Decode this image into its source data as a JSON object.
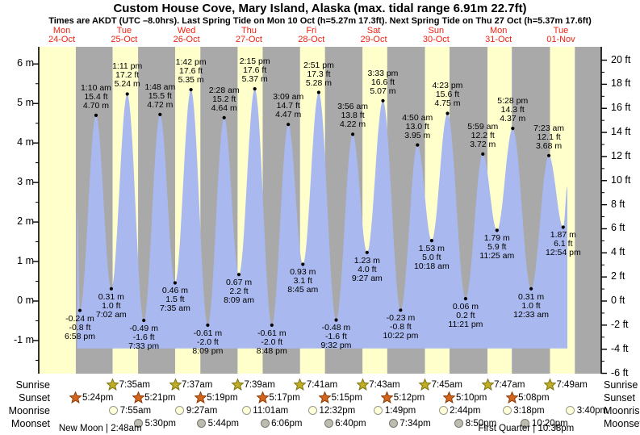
{
  "header": {
    "title": "Custom House Cove, Mary Island, Alaska (max. tidal range 6.91m 22.7ft)",
    "subtitle": "Times are AKDT (UTC –8.0hrs). Last Spring Tide on Mon 10 Oct (h=5.27m 17.3ft). Next Spring Tide on Thu 27 Oct (h=5.37m 17.6ft)"
  },
  "days": [
    {
      "weekday": "Mon",
      "date": "24-Oct"
    },
    {
      "weekday": "Tue",
      "date": "25-Oct"
    },
    {
      "weekday": "Wed",
      "date": "26-Oct"
    },
    {
      "weekday": "Thu",
      "date": "27-Oct"
    },
    {
      "weekday": "Fri",
      "date": "28-Oct"
    },
    {
      "weekday": "Sat",
      "date": "29-Oct"
    },
    {
      "weekday": "Sun",
      "date": "30-Oct"
    },
    {
      "weekday": "Mon",
      "date": "31-Oct"
    },
    {
      "weekday": "Tue",
      "date": "01-Nov"
    }
  ],
  "axes": {
    "left": [
      {
        "label": "6 m",
        "value": 6
      },
      {
        "label": "5 m",
        "value": 5
      },
      {
        "label": "4 m",
        "value": 4
      },
      {
        "label": "3 m",
        "value": 3
      },
      {
        "label": "2 m",
        "value": 2
      },
      {
        "label": "1 m",
        "value": 1
      },
      {
        "label": "0 m",
        "value": 0
      },
      {
        "label": "-1 m",
        "value": -1
      }
    ],
    "right": [
      {
        "label": "20 ft",
        "value": 20
      },
      {
        "label": "18 ft",
        "value": 18
      },
      {
        "label": "16 ft",
        "value": 16
      },
      {
        "label": "14 ft",
        "value": 14
      },
      {
        "label": "12 ft",
        "value": 12
      },
      {
        "label": "10 ft",
        "value": 10
      },
      {
        "label": "8 ft",
        "value": 8
      },
      {
        "label": "6 ft",
        "value": 6
      },
      {
        "label": "4 ft",
        "value": 4
      },
      {
        "label": "2 ft",
        "value": 2
      },
      {
        "label": "0 ft",
        "value": 0
      },
      {
        "label": "-2 ft",
        "value": -2
      },
      {
        "label": "-4 ft",
        "value": -4
      },
      {
        "label": "-6 ft",
        "value": -6
      }
    ]
  },
  "chart_data": {
    "type": "area",
    "title": "Tide height curve (metres vs time)",
    "ylim_m": [
      -1.84,
      6.39
    ],
    "legend": "none",
    "grid": "day-night bands (yellow = daylight, gray = night)",
    "extremes": [
      {
        "kind": "low",
        "day": 0,
        "time": "6:58 pm",
        "value_m": -0.24,
        "label_m": "-0.24 m",
        "label_ft": "-0.8 ft"
      },
      {
        "kind": "high",
        "day": 1,
        "time": "1:10 am",
        "value_m": 4.7,
        "label_m": "4.70 m",
        "label_ft": "15.4 ft"
      },
      {
        "kind": "low",
        "day": 1,
        "time": "7:02 am",
        "value_m": 0.31,
        "label_m": "0.31 m",
        "label_ft": "1.0 ft"
      },
      {
        "kind": "high",
        "day": 1,
        "time": "1:11 pm",
        "value_m": 5.24,
        "label_m": "5.24 m",
        "label_ft": "17.2 ft"
      },
      {
        "kind": "low",
        "day": 1,
        "time": "7:33 pm",
        "value_m": -0.49,
        "label_m": "-0.49 m",
        "label_ft": "-1.6 ft"
      },
      {
        "kind": "high",
        "day": 2,
        "time": "1:48 am",
        "value_m": 4.72,
        "label_m": "4.72 m",
        "label_ft": "15.5 ft"
      },
      {
        "kind": "low",
        "day": 2,
        "time": "7:35 am",
        "value_m": 0.46,
        "label_m": "0.46 m",
        "label_ft": "1.5 ft"
      },
      {
        "kind": "high",
        "day": 2,
        "time": "1:42 pm",
        "value_m": 5.35,
        "label_m": "5.35 m",
        "label_ft": "17.6 ft"
      },
      {
        "kind": "low",
        "day": 2,
        "time": "8:09 pm",
        "value_m": -0.61,
        "label_m": "-0.61 m",
        "label_ft": "-2.0 ft"
      },
      {
        "kind": "high",
        "day": 3,
        "time": "2:28 am",
        "value_m": 4.64,
        "label_m": "4.64 m",
        "label_ft": "15.2 ft"
      },
      {
        "kind": "low",
        "day": 3,
        "time": "8:09 am",
        "value_m": 0.67,
        "label_m": "0.67 m",
        "label_ft": "2.2 ft"
      },
      {
        "kind": "high",
        "day": 3,
        "time": "2:15 pm",
        "value_m": 5.37,
        "label_m": "5.37 m",
        "label_ft": "17.6 ft"
      },
      {
        "kind": "low",
        "day": 3,
        "time": "8:48 pm",
        "value_m": -0.61,
        "label_m": "-0.61 m",
        "label_ft": "-2.0 ft"
      },
      {
        "kind": "high",
        "day": 4,
        "time": "3:09 am",
        "value_m": 4.47,
        "label_m": "4.47 m",
        "label_ft": "14.7 ft"
      },
      {
        "kind": "low",
        "day": 4,
        "time": "8:45 am",
        "value_m": 0.93,
        "label_m": "0.93 m",
        "label_ft": "3.1 ft"
      },
      {
        "kind": "high",
        "day": 4,
        "time": "2:51 pm",
        "value_m": 5.28,
        "label_m": "5.28 m",
        "label_ft": "17.3 ft"
      },
      {
        "kind": "low",
        "day": 4,
        "time": "9:32 pm",
        "value_m": -0.48,
        "label_m": "-0.48 m",
        "label_ft": "-1.6 ft"
      },
      {
        "kind": "high",
        "day": 5,
        "time": "3:56 am",
        "value_m": 4.22,
        "label_m": "4.22 m",
        "label_ft": "13.8 ft"
      },
      {
        "kind": "low",
        "day": 5,
        "time": "9:27 am",
        "value_m": 1.23,
        "label_m": "1.23 m",
        "label_ft": "4.0 ft"
      },
      {
        "kind": "high",
        "day": 5,
        "time": "3:33 pm",
        "value_m": 5.07,
        "label_m": "5.07 m",
        "label_ft": "16.6 ft"
      },
      {
        "kind": "low",
        "day": 5,
        "time": "10:22 pm",
        "value_m": -0.23,
        "label_m": "-0.23 m",
        "label_ft": "-0.8 ft"
      },
      {
        "kind": "high",
        "day": 6,
        "time": "4:50 am",
        "value_m": 3.95,
        "label_m": "3.95 m",
        "label_ft": "13.0 ft"
      },
      {
        "kind": "low",
        "day": 6,
        "time": "10:18 am",
        "value_m": 1.53,
        "label_m": "1.53 m",
        "label_ft": "5.0 ft"
      },
      {
        "kind": "high",
        "day": 6,
        "time": "4:23 pm",
        "value_m": 4.75,
        "label_m": "4.75 m",
        "label_ft": "15.6 ft"
      },
      {
        "kind": "low",
        "day": 6,
        "time": "11:21 pm",
        "value_m": 0.06,
        "label_m": "0.06 m",
        "label_ft": "0.2 ft"
      },
      {
        "kind": "high",
        "day": 7,
        "time": "5:59 am",
        "value_m": 3.72,
        "label_m": "3.72 m",
        "label_ft": "12.2 ft"
      },
      {
        "kind": "low",
        "day": 7,
        "time": "11:25 am",
        "value_m": 1.79,
        "label_m": "1.79 m",
        "label_ft": "5.9 ft"
      },
      {
        "kind": "high",
        "day": 7,
        "time": "5:28 pm",
        "value_m": 4.37,
        "label_m": "4.37 m",
        "label_ft": "14.3 ft"
      },
      {
        "kind": "low",
        "day": 8,
        "time": "12:33 am",
        "value_m": 0.31,
        "label_m": "0.31 m",
        "label_ft": "1.0 ft"
      },
      {
        "kind": "high",
        "day": 8,
        "time": "7:23 am",
        "value_m": 3.68,
        "label_m": "3.68 m",
        "label_ft": "12.1 ft"
      },
      {
        "kind": "low",
        "day": 8,
        "time": "12:54 pm",
        "value_m": 1.87,
        "label_m": "1.87 m",
        "label_ft": "6.1 ft"
      }
    ],
    "render_anchors": {
      "curve_start": {
        "day": 0,
        "time": "5:55 pm",
        "value_m": 2.3
      },
      "curve_end": {
        "day": 8,
        "time": "2:30 pm",
        "value_m": 2.9
      }
    }
  },
  "astro": {
    "sunrise": {
      "label": "Sunrise",
      "entries": [
        {
          "day": 1,
          "time": "7:35am"
        },
        {
          "day": 2,
          "time": "7:37am"
        },
        {
          "day": 3,
          "time": "7:39am"
        },
        {
          "day": 4,
          "time": "7:41am"
        },
        {
          "day": 5,
          "time": "7:43am"
        },
        {
          "day": 6,
          "time": "7:45am"
        },
        {
          "day": 7,
          "time": "7:47am"
        },
        {
          "day": 8,
          "time": "7:49am"
        }
      ]
    },
    "sunset": {
      "label": "Sunset",
      "entries": [
        {
          "day": 0,
          "time": "5:24pm"
        },
        {
          "day": 1,
          "time": "5:21pm"
        },
        {
          "day": 2,
          "time": "5:19pm"
        },
        {
          "day": 3,
          "time": "5:17pm"
        },
        {
          "day": 4,
          "time": "5:15pm"
        },
        {
          "day": 5,
          "time": "5:12pm"
        },
        {
          "day": 6,
          "time": "5:10pm"
        },
        {
          "day": 7,
          "time": "5:08pm"
        }
      ]
    },
    "moonrise": {
      "label": "Moonrise",
      "entries": [
        {
          "day": 1,
          "time": "7:55am"
        },
        {
          "day": 2,
          "time": "9:27am"
        },
        {
          "day": 3,
          "time": "11:01am"
        },
        {
          "day": 4,
          "time": "12:32pm"
        },
        {
          "day": 5,
          "time": "1:49pm"
        },
        {
          "day": 6,
          "time": "2:44pm"
        },
        {
          "day": 7,
          "time": "3:18pm"
        },
        {
          "day": 8,
          "time": "3:40pm"
        }
      ]
    },
    "moonset": {
      "label": "Moonset",
      "entries": [
        {
          "day": 1,
          "time": "5:30pm"
        },
        {
          "day": 2,
          "time": "5:44pm"
        },
        {
          "day": 3,
          "time": "6:06pm"
        },
        {
          "day": 4,
          "time": "6:40pm"
        },
        {
          "day": 5,
          "time": "7:34pm"
        },
        {
          "day": 6,
          "time": "8:50pm"
        },
        {
          "day": 7,
          "time": "10:20pm"
        }
      ]
    },
    "phases": [
      {
        "label": "New Moon",
        "time": "2:48am",
        "day": 1,
        "separator": "|"
      },
      {
        "label": "First Quarter",
        "time": "10:38pm",
        "day": 7,
        "separator": "|"
      }
    ]
  },
  "colors": {
    "day_band": "#ffffcc",
    "night_band": "#a9a9a9",
    "tide_fill": "#a9b8ee",
    "heading_red": "#ee2211",
    "axis_black": "#000000",
    "sunrise_star_fill": "#bfae24",
    "sunrise_star_stroke": "#7d7213",
    "sunset_star_fill": "#d4651a",
    "sunset_star_stroke": "#8a3c0c",
    "moonrise_fill": "#ffffd8",
    "moonrise_stroke": "#9a9a8a",
    "moonset_fill": "#bcbcb0",
    "moonset_stroke": "#77776d"
  }
}
